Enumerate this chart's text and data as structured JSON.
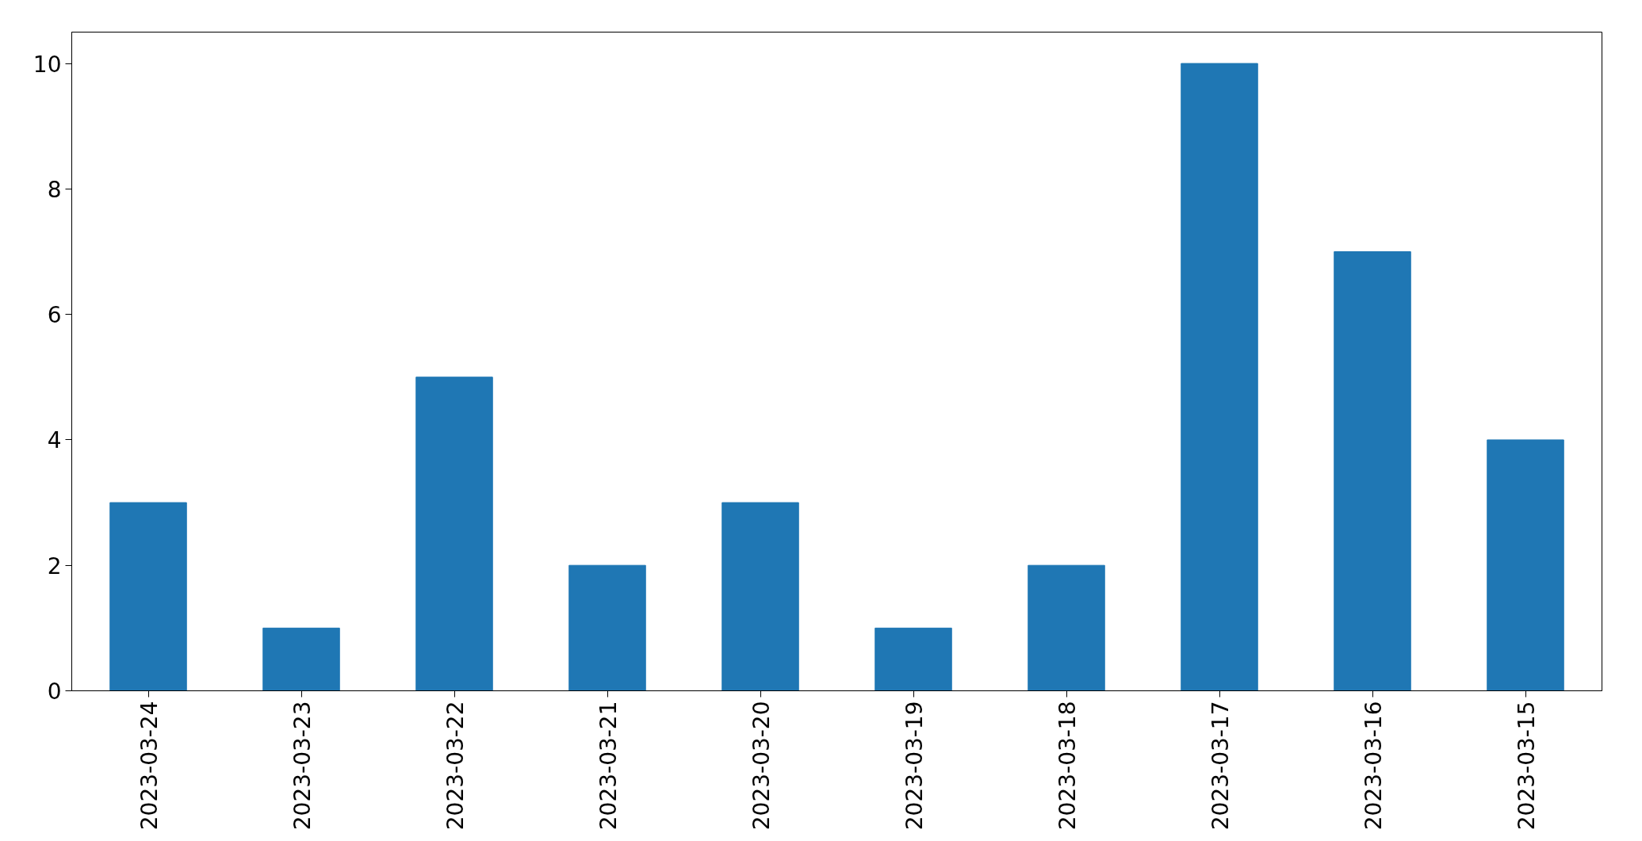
{
  "chart_data": {
    "type": "bar",
    "categories": [
      "2023-03-24",
      "2023-03-23",
      "2023-03-22",
      "2023-03-21",
      "2023-03-20",
      "2023-03-19",
      "2023-03-18",
      "2023-03-17",
      "2023-03-16",
      "2023-03-15"
    ],
    "values": [
      3,
      1,
      5,
      2,
      3,
      1,
      2,
      10,
      7,
      4
    ],
    "color": "#1f77b4",
    "ylim": [
      0,
      10.5
    ],
    "yticks": [
      0,
      2,
      4,
      6,
      8,
      10
    ],
    "grid": false
  }
}
